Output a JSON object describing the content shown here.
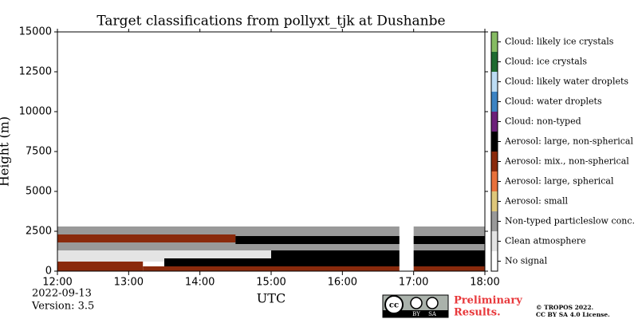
{
  "chart_data": {
    "type": "classification",
    "title": "Target classifications from pollyxt_tjk at Dushanbe",
    "x_label": "UTC",
    "y_label": "Height (m)",
    "xlim": [
      12,
      18
    ],
    "xticks": [
      {
        "value": 12,
        "label": "12:00"
      },
      {
        "value": 13,
        "label": "13:00"
      },
      {
        "value": 14,
        "label": "14:00"
      },
      {
        "value": 15,
        "label": "15:00"
      },
      {
        "value": 16,
        "label": "16:00"
      },
      {
        "value": 17,
        "label": "17:00"
      },
      {
        "value": 18,
        "label": "18:00"
      }
    ],
    "ylim": [
      0,
      15000
    ],
    "yticks": [
      0,
      2500,
      5000,
      7500,
      10000,
      12500,
      15000
    ],
    "classes": [
      {
        "name": "Cloud: likely ice crystals",
        "color": "#86bb63"
      },
      {
        "name": "Cloud: ice crystals",
        "color": "#1f6b31"
      },
      {
        "name": "Cloud: likely water droplets",
        "color": "#bcdcf4"
      },
      {
        "name": "Cloud: water droplets",
        "color": "#3c83c3"
      },
      {
        "name": "Cloud: non-typed",
        "color": "#6c2079"
      },
      {
        "name": "Aerosol: large, non-spherical",
        "color": "#000000"
      },
      {
        "name": "Aerosol: mix., non-spherical",
        "color": "#8a2a0c"
      },
      {
        "name": "Aerosol: large, spherical",
        "color": "#e8713b"
      },
      {
        "name": "Aerosol: small",
        "color": "#dfc77a"
      },
      {
        "name": "Non-typed particleslow conc.",
        "color": "#999999"
      },
      {
        "name": "Clean atmosphere",
        "color": "#e4e4e4"
      },
      {
        "name": "No signal",
        "color": "#ffffff"
      }
    ],
    "layers": [
      {
        "x": [
          12,
          18
        ],
        "y": [
          1200,
          2800
        ],
        "class": 9
      },
      {
        "x": [
          12,
          18
        ],
        "y": [
          600,
          1300
        ],
        "class": 10
      },
      {
        "x": [
          12,
          14.5
        ],
        "y": [
          1800,
          2300
        ],
        "class": 6
      },
      {
        "x": [
          14.5,
          18
        ],
        "y": [
          1700,
          2200
        ],
        "class": 5
      },
      {
        "x": [
          12,
          13.2
        ],
        "y": [
          0,
          600
        ],
        "class": 6
      },
      {
        "x": [
          13.2,
          18
        ],
        "y": [
          0,
          300
        ],
        "class": 6
      },
      {
        "x": [
          13.5,
          18
        ],
        "y": [
          300,
          800
        ],
        "class": 5
      },
      {
        "x": [
          15,
          18
        ],
        "y": [
          800,
          1300
        ],
        "class": 5
      },
      {
        "x": [
          16.8,
          17
        ],
        "y": [
          0,
          15000
        ],
        "class": 11
      }
    ]
  },
  "footer": {
    "date": "2022-09-13",
    "version": "Version: 3.5",
    "logo": [
      "cc",
      "BY",
      "SA"
    ],
    "notice": [
      "Preliminary",
      "Results."
    ],
    "copyright": [
      "© TROPOS 2022.",
      "CC BY SA 4.0 License."
    ]
  }
}
